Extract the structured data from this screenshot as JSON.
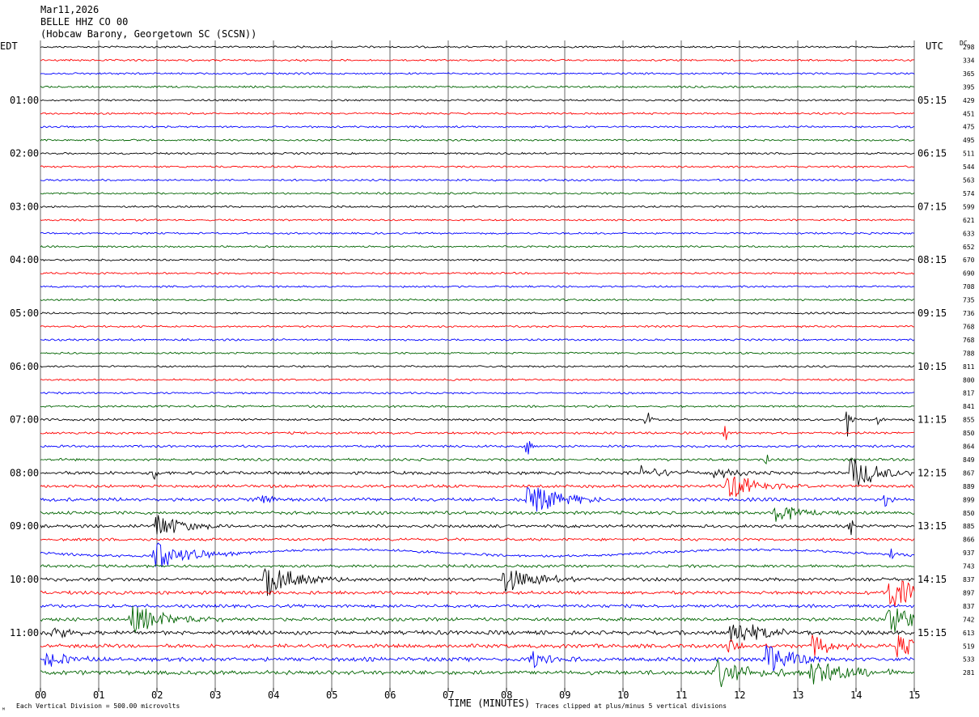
{
  "header": {
    "date": "Mar11,2026",
    "station": "BELLE HHZ CO 00",
    "location": "(Hobcaw Barony, Georgetown SC (SCSN))"
  },
  "left_axis_label": "EDT",
  "right_axis_label": "UTC",
  "dc_label": "DC",
  "footer": {
    "scale_note": "Each Vertical Division =  500.00 microvolts",
    "xlabel": "TIME (MINUTES)",
    "clip_note": "Traces clipped at plus/minus 5 vertical divisions",
    "corner_mark": "ᴹ"
  },
  "colors": {
    "trace_cycle": [
      "#000000",
      "#ff0000",
      "#0000ff",
      "#006400"
    ],
    "grid": "#000000",
    "background": "#ffffff"
  },
  "chart_data": {
    "type": "line",
    "description_free": true,
    "xlim": [
      0,
      15
    ],
    "x_ticks": [
      "00",
      "01",
      "02",
      "03",
      "04",
      "05",
      "06",
      "07",
      "08",
      "09",
      "10",
      "11",
      "12",
      "13",
      "14",
      "15"
    ],
    "row_count": 48,
    "left_time_labels": [
      {
        "row": 4,
        "label": "01:00"
      },
      {
        "row": 8,
        "label": "02:00"
      },
      {
        "row": 12,
        "label": "03:00"
      },
      {
        "row": 16,
        "label": "04:00"
      },
      {
        "row": 20,
        "label": "05:00"
      },
      {
        "row": 24,
        "label": "06:00"
      },
      {
        "row": 28,
        "label": "07:00"
      },
      {
        "row": 32,
        "label": "08:00"
      },
      {
        "row": 36,
        "label": "09:00"
      },
      {
        "row": 40,
        "label": "10:00"
      },
      {
        "row": 44,
        "label": "11:00"
      }
    ],
    "right_time_labels": [
      {
        "row": 4,
        "label": "05:15"
      },
      {
        "row": 8,
        "label": "06:15"
      },
      {
        "row": 12,
        "label": "07:15"
      },
      {
        "row": 16,
        "label": "08:15"
      },
      {
        "row": 20,
        "label": "09:15"
      },
      {
        "row": 24,
        "label": "10:15"
      },
      {
        "row": 28,
        "label": "11:15"
      },
      {
        "row": 32,
        "label": "12:15"
      },
      {
        "row": 36,
        "label": "13:15"
      },
      {
        "row": 40,
        "label": "14:15"
      },
      {
        "row": 44,
        "label": "15:15"
      }
    ],
    "dc_offsets": [
      "298",
      "334",
      "365",
      "395",
      "429",
      "451",
      "475",
      "495",
      "511",
      "544",
      "563",
      "574",
      "599",
      "621",
      "633",
      "652",
      "670",
      "690",
      "708",
      "735",
      "736",
      "768",
      "768",
      "788",
      "811",
      "800",
      "817",
      "841",
      "855",
      "850",
      "864",
      "849",
      "867",
      "889",
      "899",
      "850",
      "885",
      "866",
      "937",
      "743",
      "837",
      "897",
      "837",
      "742",
      "613",
      "519",
      "533",
      "281"
    ],
    "noise_amplitude": [
      0.9,
      0.9,
      0.9,
      0.9,
      0.9,
      0.9,
      0.9,
      0.9,
      0.9,
      0.9,
      0.9,
      0.9,
      0.9,
      0.9,
      0.9,
      0.9,
      0.9,
      0.9,
      0.9,
      0.9,
      0.9,
      0.9,
      0.9,
      0.9,
      0.9,
      0.9,
      0.9,
      1.0,
      1.1,
      1.1,
      1.1,
      1.2,
      1.5,
      1.4,
      1.6,
      1.5,
      1.4,
      1.3,
      1.2,
      1.3,
      1.6,
      1.6,
      1.5,
      1.6,
      1.9,
      1.8,
      1.9,
      2.0
    ],
    "events": [
      {
        "row": 28,
        "x": 10.4,
        "amp": 18,
        "dur": 0.05
      },
      {
        "row": 28,
        "x": 13.85,
        "amp": 22,
        "dur": 0.06
      },
      {
        "row": 28,
        "x": 14.35,
        "amp": 14,
        "dur": 0.05
      },
      {
        "row": 29,
        "x": 11.75,
        "amp": 16,
        "dur": 0.05
      },
      {
        "row": 30,
        "x": 8.35,
        "amp": 18,
        "dur": 0.06
      },
      {
        "row": 31,
        "x": 12.45,
        "amp": 10,
        "dur": 0.05
      },
      {
        "row": 31,
        "x": 1.95,
        "amp": 8,
        "dur": 0.04
      },
      {
        "row": 32,
        "x": 10.3,
        "amp": 10,
        "dur": 0.4
      },
      {
        "row": 32,
        "x": 11.5,
        "amp": 8,
        "dur": 0.4
      },
      {
        "row": 32,
        "x": 1.95,
        "amp": 12,
        "dur": 0.05
      },
      {
        "row": 32,
        "x": 13.9,
        "amp": 22,
        "dur": 0.5
      },
      {
        "row": 33,
        "x": 11.8,
        "amp": 18,
        "dur": 0.5
      },
      {
        "row": 34,
        "x": 3.75,
        "amp": 14,
        "dur": 0.2
      },
      {
        "row": 34,
        "x": 8.35,
        "amp": 24,
        "dur": 0.5
      },
      {
        "row": 34,
        "x": 14.5,
        "amp": 10,
        "dur": 0.06
      },
      {
        "row": 35,
        "x": 12.6,
        "amp": 16,
        "dur": 0.4
      },
      {
        "row": 36,
        "x": 1.95,
        "amp": 18,
        "dur": 0.5
      },
      {
        "row": 36,
        "x": 13.9,
        "amp": 16,
        "dur": 0.05
      },
      {
        "row": 38,
        "x": 1.9,
        "amp": 20,
        "dur": 0.6
      },
      {
        "row": 38,
        "x": 14.6,
        "amp": 8,
        "dur": 0.08
      },
      {
        "row": 40,
        "x": 3.85,
        "amp": 22,
        "dur": 0.5
      },
      {
        "row": 40,
        "x": 7.95,
        "amp": 18,
        "dur": 0.5
      },
      {
        "row": 41,
        "x": 14.55,
        "amp": 22,
        "dur": 0.6
      },
      {
        "row": 43,
        "x": 1.55,
        "amp": 20,
        "dur": 0.6
      },
      {
        "row": 43,
        "x": 14.55,
        "amp": 20,
        "dur": 0.6
      },
      {
        "row": 44,
        "x": 11.85,
        "amp": 20,
        "dur": 0.5
      },
      {
        "row": 44,
        "x": 0.2,
        "amp": 10,
        "dur": 0.3
      },
      {
        "row": 45,
        "x": 13.25,
        "amp": 18,
        "dur": 0.3
      },
      {
        "row": 45,
        "x": 14.7,
        "amp": 18,
        "dur": 0.3
      },
      {
        "row": 45,
        "x": 11.8,
        "amp": 10,
        "dur": 0.2
      },
      {
        "row": 46,
        "x": 12.45,
        "amp": 24,
        "dur": 0.4
      },
      {
        "row": 46,
        "x": 8.4,
        "amp": 12,
        "dur": 0.3
      },
      {
        "row": 46,
        "x": 0.1,
        "amp": 14,
        "dur": 0.3
      },
      {
        "row": 47,
        "x": 11.6,
        "amp": 18,
        "dur": 0.6
      },
      {
        "row": 47,
        "x": 13.2,
        "amp": 20,
        "dur": 0.6
      }
    ],
    "swells": [
      {
        "row": 38,
        "amp": 4
      }
    ]
  }
}
